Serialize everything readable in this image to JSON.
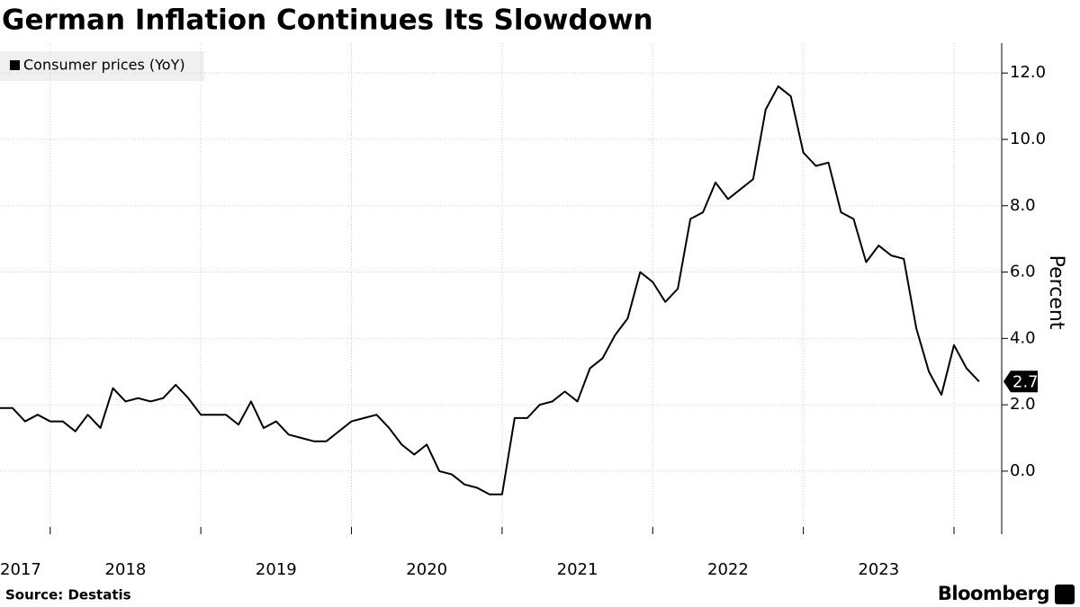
{
  "chart_data": {
    "type": "line",
    "title": "German Inflation Continues Its Slowdown",
    "y_label": "Percent",
    "source": "Source: Destatis",
    "logo": "Bloomberg",
    "x": [
      "2017-08",
      "2017-09",
      "2017-10",
      "2017-11",
      "2017-12",
      "2018-01",
      "2018-02",
      "2018-03",
      "2018-04",
      "2018-05",
      "2018-06",
      "2018-07",
      "2018-08",
      "2018-09",
      "2018-10",
      "2018-11",
      "2018-12",
      "2019-01",
      "2019-02",
      "2019-03",
      "2019-04",
      "2019-05",
      "2019-06",
      "2019-07",
      "2019-08",
      "2019-09",
      "2019-10",
      "2019-11",
      "2019-12",
      "2020-01",
      "2020-02",
      "2020-03",
      "2020-04",
      "2020-05",
      "2020-06",
      "2020-07",
      "2020-08",
      "2020-09",
      "2020-10",
      "2020-11",
      "2020-12",
      "2021-01",
      "2021-02",
      "2021-03",
      "2021-04",
      "2021-05",
      "2021-06",
      "2021-07",
      "2021-08",
      "2021-09",
      "2021-10",
      "2021-11",
      "2021-12",
      "2022-01",
      "2022-02",
      "2022-03",
      "2022-04",
      "2022-05",
      "2022-06",
      "2022-07",
      "2022-08",
      "2022-09",
      "2022-10",
      "2022-11",
      "2022-12",
      "2023-01",
      "2023-02",
      "2023-03",
      "2023-04",
      "2023-05",
      "2023-06",
      "2023-07",
      "2023-08",
      "2023-09",
      "2023-10",
      "2023-11",
      "2023-12",
      "2024-01",
      "2024-02"
    ],
    "series": [
      {
        "name": "Consumer prices (YoY)",
        "color": "#000000",
        "values": [
          1.9,
          1.9,
          1.5,
          1.7,
          1.5,
          1.5,
          1.2,
          1.7,
          1.3,
          2.5,
          2.1,
          2.2,
          2.1,
          2.2,
          2.6,
          2.2,
          1.7,
          1.7,
          1.7,
          1.4,
          2.1,
          1.3,
          1.5,
          1.1,
          1.0,
          0.9,
          0.9,
          1.2,
          1.5,
          1.6,
          1.7,
          1.3,
          0.8,
          0.5,
          0.8,
          0.0,
          -0.1,
          -0.4,
          -0.5,
          -0.7,
          -0.7,
          1.6,
          1.6,
          2.0,
          2.1,
          2.4,
          2.1,
          3.1,
          3.4,
          4.1,
          4.6,
          6.0,
          5.7,
          5.1,
          5.5,
          7.6,
          7.8,
          8.7,
          8.2,
          8.5,
          8.8,
          10.9,
          11.6,
          11.3,
          9.6,
          9.2,
          9.3,
          7.8,
          7.6,
          6.3,
          6.8,
          6.5,
          6.4,
          4.3,
          3.0,
          2.3,
          3.8,
          3.1,
          2.7
        ]
      }
    ],
    "xlim": [
      2017.6667,
      2024.3167
    ],
    "xticks": [
      2017,
      2018,
      2019,
      2020,
      2021,
      2022,
      2023
    ],
    "ylim": [
      -1.9,
      12.9
    ],
    "yticks": [
      {
        "value": 0,
        "label": "0.0"
      },
      {
        "value": 2,
        "label": "2.0"
      },
      {
        "value": 4,
        "label": "4.0"
      },
      {
        "value": 6,
        "label": "6.0"
      },
      {
        "value": 8,
        "label": "8.0"
      },
      {
        "value": 10,
        "label": "10.0"
      },
      {
        "value": 12,
        "label": "12.0"
      }
    ],
    "grid": true,
    "legend": "top-left"
  }
}
